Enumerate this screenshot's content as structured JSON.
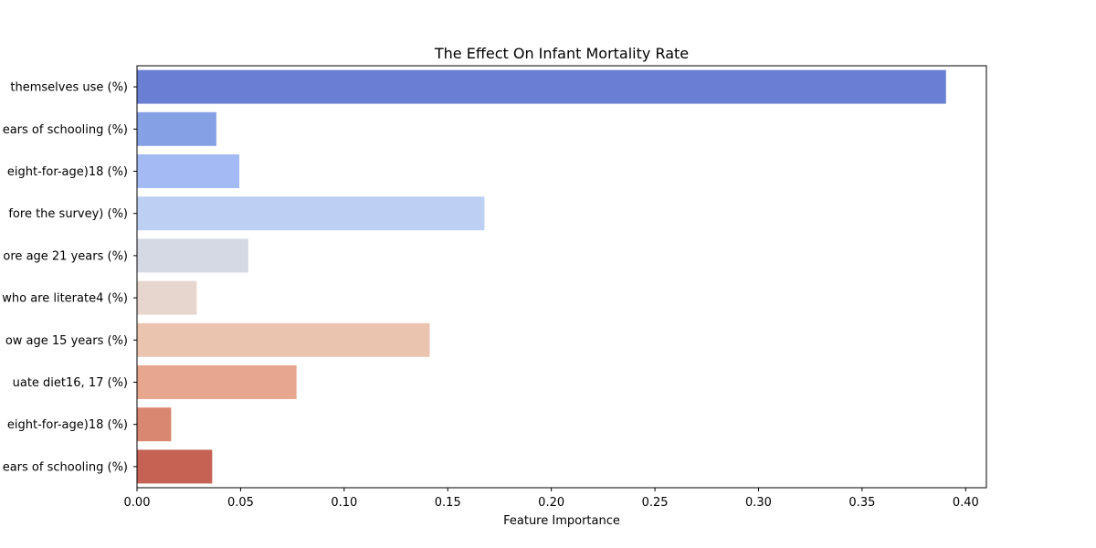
{
  "chart_data": {
    "type": "bar",
    "orientation": "horizontal",
    "title": "The Effect On Infant Mortality Rate",
    "xlabel": "Feature Importance",
    "ylabel": "",
    "xlim": [
      0,
      0.41
    ],
    "xticks": [
      "0.00",
      "0.05",
      "0.10",
      "0.15",
      "0.20",
      "0.25",
      "0.30",
      "0.35",
      "0.40"
    ],
    "grid": false,
    "categories": [
      "themselves use (%)",
      "ears of schooling (%)",
      "eight-for-age)18 (%)",
      "fore the survey) (%)",
      "ore age 21 years (%)",
      "who are literate4 (%)",
      "ow age 15 years (%)",
      "uate diet16, 17  (%)",
      "eight-for-age)18 (%)",
      "ears of schooling (%)"
    ],
    "values": [
      0.3905,
      0.0383,
      0.0494,
      0.1677,
      0.0537,
      0.0288,
      0.1413,
      0.077,
      0.0165,
      0.0363
    ],
    "colors": [
      "#6a7fd3",
      "#86a0e6",
      "#a3baf5",
      "#bdcff2",
      "#d5d9e4",
      "#e6d6ce",
      "#ebc4b0",
      "#e6a78e",
      "#da8771",
      "#c56254"
    ]
  }
}
